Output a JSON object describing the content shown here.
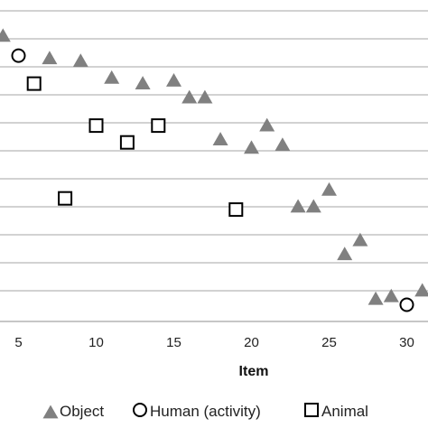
{
  "chart_data": {
    "type": "scatter",
    "title": "",
    "xlabel": "Item",
    "ylabel": "",
    "xlim": [
      4,
      31
    ],
    "ylim": [
      0,
      10
    ],
    "x_ticks": [
      5,
      10,
      15,
      20,
      25,
      30
    ],
    "y_ticks": [
      0,
      1,
      2,
      3,
      4,
      5,
      6,
      7,
      8,
      9,
      10
    ],
    "grid": "horizontal",
    "legend_position": "bottom",
    "series": [
      {
        "name": "Object",
        "marker": "triangle",
        "color": "#808080",
        "points": [
          {
            "x": 4,
            "y": 9.1
          },
          {
            "x": 7,
            "y": 8.3
          },
          {
            "x": 9,
            "y": 8.2
          },
          {
            "x": 11,
            "y": 7.6
          },
          {
            "x": 13,
            "y": 7.4
          },
          {
            "x": 15,
            "y": 7.5
          },
          {
            "x": 16,
            "y": 6.9
          },
          {
            "x": 17,
            "y": 6.9
          },
          {
            "x": 18,
            "y": 5.4
          },
          {
            "x": 20,
            "y": 5.1
          },
          {
            "x": 21,
            "y": 5.9
          },
          {
            "x": 22,
            "y": 5.2
          },
          {
            "x": 23,
            "y": 3.0
          },
          {
            "x": 24,
            "y": 3.0
          },
          {
            "x": 25,
            "y": 3.6
          },
          {
            "x": 26,
            "y": 1.3
          },
          {
            "x": 27,
            "y": 1.8
          },
          {
            "x": 28,
            "y": -0.3
          },
          {
            "x": 29,
            "y": -0.2
          },
          {
            "x": 31,
            "y": 0.0
          }
        ]
      },
      {
        "name": "Human (activity)",
        "marker": "circle",
        "color": "#000000",
        "points": [
          {
            "x": 5,
            "y": 8.4
          },
          {
            "x": 30,
            "y": -0.5
          }
        ]
      },
      {
        "name": "Animal",
        "marker": "square",
        "color": "#000000",
        "points": [
          {
            "x": 6,
            "y": 7.4
          },
          {
            "x": 8,
            "y": 3.3
          },
          {
            "x": 10,
            "y": 5.9
          },
          {
            "x": 12,
            "y": 5.3
          },
          {
            "x": 14,
            "y": 5.9
          },
          {
            "x": 19,
            "y": 2.9
          }
        ]
      }
    ]
  }
}
